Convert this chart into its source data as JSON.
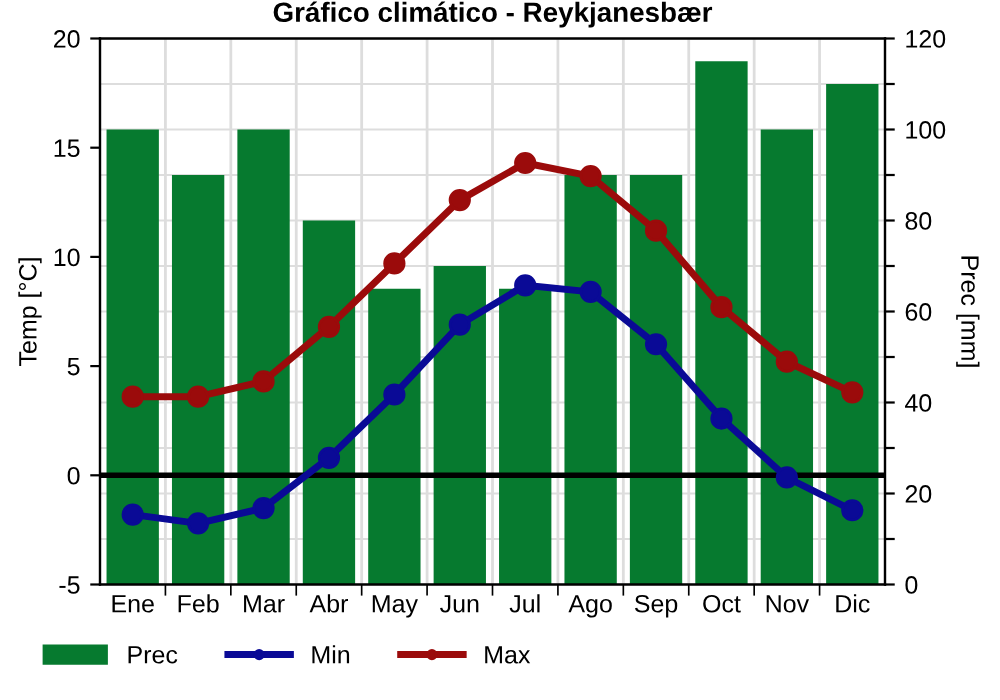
{
  "chart_data": {
    "type": "bar",
    "title": "Gráfico climático - Reykjanesbær",
    "ylabel": "Temp [°C]",
    "y2label": "Prec [mm]",
    "categories": [
      "Ene",
      "Feb",
      "Mar",
      "Abr",
      "May",
      "Jun",
      "Jul",
      "Ago",
      "Sep",
      "Oct",
      "Nov",
      "Dic"
    ],
    "series": [
      {
        "name": "Prec",
        "axis": "y2",
        "color": "#067a2f",
        "values": [
          100,
          90,
          100,
          80,
          65,
          70,
          65,
          90,
          90,
          115,
          100,
          110
        ]
      },
      {
        "name": "Min",
        "type": "line",
        "color": "#0a0a96",
        "values": [
          -1.8,
          -2.2,
          -1.5,
          0.8,
          3.7,
          6.9,
          8.7,
          8.4,
          6.0,
          2.6,
          -0.1,
          -1.6
        ]
      },
      {
        "name": "Max",
        "type": "line",
        "color": "#9b0b0b",
        "values": [
          3.6,
          3.6,
          4.3,
          6.8,
          9.7,
          12.6,
          14.3,
          13.7,
          11.2,
          7.7,
          5.2,
          3.8
        ]
      }
    ],
    "ylim": [
      -5,
      20
    ],
    "yticks": [
      -5,
      0,
      5,
      10,
      15,
      20
    ],
    "y2lim": [
      0,
      120
    ],
    "y2ticks": [
      0,
      {
        "value": 10,
        "label": null
      },
      20,
      {
        "value": 30,
        "label": null
      },
      40,
      {
        "value": 50,
        "label": null
      },
      60,
      {
        "value": 70,
        "label": null
      },
      80,
      {
        "value": 90,
        "label": null
      },
      100,
      {
        "value": 110,
        "label": null
      },
      120
    ],
    "ref_lines": [
      {
        "axis": "y",
        "value": 0,
        "color": "#000000"
      }
    ],
    "grid": true,
    "legend": "bottom",
    "marker": "circle",
    "line_style": "solid"
  }
}
